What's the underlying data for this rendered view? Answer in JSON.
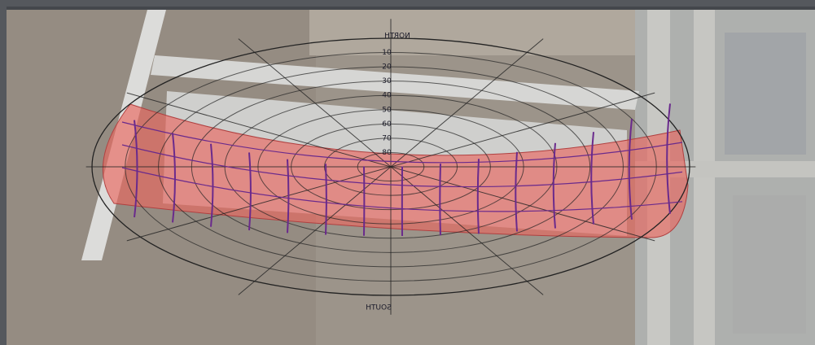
{
  "diagram": {
    "north_label": "NORTH",
    "south_label": "SOUTH",
    "altitude_labels": [
      "10",
      "20",
      "30",
      "40",
      "50",
      "60",
      "70",
      "80"
    ]
  }
}
